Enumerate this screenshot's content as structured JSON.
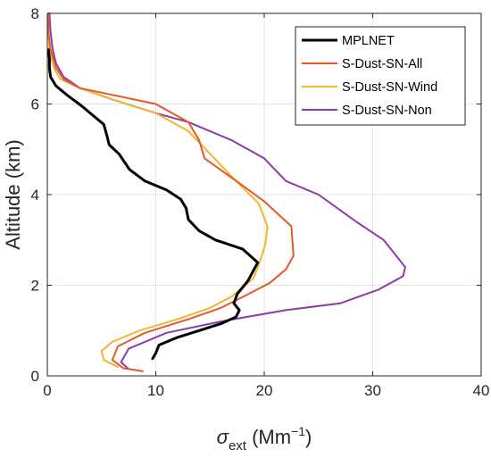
{
  "chart_data": {
    "type": "line",
    "xlabel": "σ",
    "xlabel_sub": "ext",
    "xlabel_unit_open": " (Mm",
    "xlabel_unit_sup": "−1",
    "xlabel_unit_close": ")",
    "ylabel": "Altitude (km)",
    "xlim": [
      0,
      40
    ],
    "ylim": [
      0,
      8
    ],
    "xticks": [
      "0",
      "10",
      "20",
      "30",
      "40"
    ],
    "yticks": [
      "0",
      "2",
      "4",
      "6",
      "8"
    ],
    "grid": true,
    "legend_position": "top-right",
    "series": [
      {
        "name": "MPLNET",
        "color": "#000000",
        "points": [
          [
            9.7,
            0.38
          ],
          [
            10,
            0.5
          ],
          [
            10.3,
            0.68
          ],
          [
            12,
            0.85
          ],
          [
            14,
            1.0
          ],
          [
            16,
            1.15
          ],
          [
            17.4,
            1.3
          ],
          [
            17.7,
            1.45
          ],
          [
            17.2,
            1.6
          ],
          [
            17.5,
            1.8
          ],
          [
            18.5,
            2.1
          ],
          [
            19.4,
            2.5
          ],
          [
            18,
            2.8
          ],
          [
            15.5,
            3.0
          ],
          [
            14,
            3.2
          ],
          [
            13,
            3.45
          ],
          [
            12.8,
            3.7
          ],
          [
            12.3,
            3.9
          ],
          [
            11,
            4.1
          ],
          [
            9,
            4.3
          ],
          [
            7.6,
            4.55
          ],
          [
            6.6,
            4.9
          ],
          [
            5.7,
            5.1
          ],
          [
            5.5,
            5.3
          ],
          [
            5.2,
            5.55
          ],
          [
            4.2,
            5.75
          ],
          [
            3.2,
            5.95
          ],
          [
            1.8,
            6.2
          ],
          [
            0.8,
            6.4
          ],
          [
            0.3,
            6.6
          ],
          [
            0.2,
            6.8
          ],
          [
            0.2,
            7.0
          ],
          [
            0.1,
            7.2
          ]
        ]
      },
      {
        "name": "S-Dust-SN-All",
        "color": "#e05a2b",
        "points": [
          [
            8.8,
            0.1
          ],
          [
            7,
            0.17
          ],
          [
            6,
            0.35
          ],
          [
            6.5,
            0.65
          ],
          [
            9,
            0.95
          ],
          [
            13,
            1.25
          ],
          [
            16,
            1.5
          ],
          [
            18.5,
            1.8
          ],
          [
            20.5,
            2.05
          ],
          [
            22,
            2.35
          ],
          [
            22.7,
            2.65
          ],
          [
            22.5,
            3.3
          ],
          [
            20,
            3.85
          ],
          [
            18,
            4.2
          ],
          [
            14.5,
            4.8
          ],
          [
            14,
            5.2
          ],
          [
            13,
            5.6
          ],
          [
            10,
            6.0
          ],
          [
            6,
            6.2
          ],
          [
            3,
            6.35
          ],
          [
            1.5,
            6.55
          ],
          [
            0.8,
            6.8
          ],
          [
            0.3,
            7.2
          ],
          [
            0.1,
            7.6
          ],
          [
            0.1,
            8.0
          ]
        ]
      },
      {
        "name": "S-Dust-SN-Wind",
        "color": "#f2b530",
        "points": [
          [
            6.5,
            0.2
          ],
          [
            5.2,
            0.35
          ],
          [
            5,
            0.55
          ],
          [
            6,
            0.75
          ],
          [
            8.5,
            1.0
          ],
          [
            12,
            1.25
          ],
          [
            15,
            1.5
          ],
          [
            17,
            1.75
          ],
          [
            19,
            2.15
          ],
          [
            19.5,
            2.45
          ],
          [
            20.1,
            2.9
          ],
          [
            20.3,
            3.3
          ],
          [
            19.5,
            3.8
          ],
          [
            17,
            4.4
          ],
          [
            15,
            4.9
          ],
          [
            13,
            5.4
          ],
          [
            10,
            5.8
          ],
          [
            6,
            6.1
          ],
          [
            3,
            6.35
          ],
          [
            1.2,
            6.55
          ],
          [
            0.6,
            6.8
          ],
          [
            0.2,
            7.2
          ],
          [
            0.1,
            7.6
          ],
          [
            0.1,
            8.0
          ]
        ]
      },
      {
        "name": "S-Dust-SN-Non",
        "color": "#8e3aa8",
        "points": [
          [
            7.5,
            0.15
          ],
          [
            6.8,
            0.3
          ],
          [
            7.5,
            0.6
          ],
          [
            11,
            0.95
          ],
          [
            16,
            1.2
          ],
          [
            22,
            1.45
          ],
          [
            27,
            1.6
          ],
          [
            30.5,
            1.9
          ],
          [
            32.8,
            2.2
          ],
          [
            33,
            2.4
          ],
          [
            31,
            3.0
          ],
          [
            28.5,
            3.4
          ],
          [
            25,
            4.0
          ],
          [
            22,
            4.3
          ],
          [
            20,
            4.8
          ],
          [
            17,
            5.2
          ],
          [
            13,
            5.6
          ],
          [
            10,
            5.8
          ],
          [
            6,
            6.1
          ],
          [
            3,
            6.35
          ],
          [
            1.5,
            6.6
          ],
          [
            0.8,
            6.9
          ],
          [
            0.5,
            7.2
          ],
          [
            0.3,
            7.6
          ],
          [
            0.2,
            8.0
          ]
        ]
      }
    ]
  }
}
